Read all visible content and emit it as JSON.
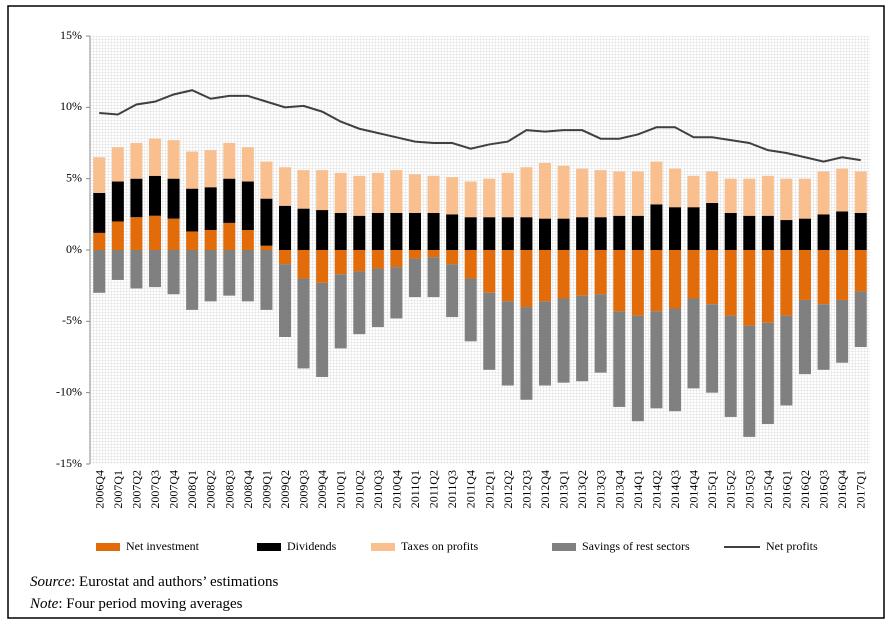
{
  "chart_data": {
    "type": "bar",
    "categories": [
      "2006Q4",
      "2007Q1",
      "2007Q2",
      "2007Q3",
      "2007Q4",
      "2008Q1",
      "2008Q2",
      "2008Q3",
      "2008Q4",
      "2009Q1",
      "2009Q2",
      "2009Q3",
      "2009Q4",
      "2010Q1",
      "2010Q2",
      "2010Q3",
      "2010Q4",
      "2011Q1",
      "2011Q2",
      "2011Q3",
      "2011Q4",
      "2012Q1",
      "2012Q2",
      "2012Q3",
      "2012Q4",
      "2013Q1",
      "2013Q2",
      "2013Q3",
      "2013Q4",
      "2014Q1",
      "2014Q2",
      "2014Q3",
      "2014Q4",
      "2015Q1",
      "2015Q2",
      "2015Q3",
      "2015Q4",
      "2016Q1",
      "2016Q2",
      "2016Q3",
      "2016Q4",
      "2017Q1"
    ],
    "series": [
      {
        "name": "Net investment",
        "color": "#e36c0a",
        "values": [
          1.2,
          2.0,
          2.3,
          2.4,
          2.2,
          1.3,
          1.4,
          1.9,
          1.4,
          0.3,
          -1.0,
          -2.0,
          -2.3,
          -1.7,
          -1.5,
          -1.3,
          -1.2,
          -0.6,
          -0.5,
          -1.0,
          -2.0,
          -3.0,
          -3.6,
          -4.0,
          -3.6,
          -3.4,
          -3.2,
          -3.1,
          -4.3,
          -4.6,
          -4.3,
          -4.1,
          -3.4,
          -3.8,
          -4.6,
          -5.3,
          -5.1,
          -4.6,
          -3.5,
          -3.8,
          -3.5,
          -2.9
        ]
      },
      {
        "name": "Dividends",
        "color": "#000000",
        "values": [
          2.8,
          2.8,
          2.7,
          2.8,
          2.8,
          3.0,
          3.0,
          3.1,
          3.4,
          3.3,
          3.1,
          2.9,
          2.8,
          2.6,
          2.4,
          2.6,
          2.6,
          2.6,
          2.6,
          2.5,
          2.3,
          2.3,
          2.3,
          2.3,
          2.2,
          2.2,
          2.3,
          2.3,
          2.4,
          2.4,
          3.2,
          3.0,
          3.0,
          3.3,
          2.6,
          2.4,
          2.4,
          2.1,
          2.2,
          2.5,
          2.7,
          2.6
        ]
      },
      {
        "name": "Taxes on profits",
        "color": "#fabf8f",
        "values": [
          2.5,
          2.4,
          2.5,
          2.6,
          2.7,
          2.6,
          2.6,
          2.5,
          2.4,
          2.6,
          2.7,
          2.7,
          2.8,
          2.8,
          2.8,
          2.8,
          3.0,
          2.7,
          2.6,
          2.6,
          2.5,
          2.7,
          3.1,
          3.5,
          3.9,
          3.7,
          3.4,
          3.3,
          3.1,
          3.1,
          3.0,
          2.7,
          2.2,
          2.2,
          2.4,
          2.6,
          2.8,
          2.9,
          2.8,
          3.0,
          3.0,
          2.9
        ]
      },
      {
        "name": "Savings of rest sectors",
        "color": "#808080",
        "values": [
          -3.0,
          -2.1,
          -2.7,
          -2.6,
          -3.1,
          -4.2,
          -3.6,
          -3.2,
          -3.6,
          -4.2,
          -5.1,
          -6.3,
          -6.6,
          -5.2,
          -4.4,
          -4.1,
          -3.6,
          -2.7,
          -2.8,
          -3.7,
          -4.4,
          -5.4,
          -5.9,
          -6.5,
          -5.9,
          -5.9,
          -6.0,
          -5.5,
          -6.7,
          -7.4,
          -6.8,
          -7.2,
          -6.3,
          -6.2,
          -7.1,
          -7.8,
          -7.1,
          -6.3,
          -5.2,
          -4.6,
          -4.4,
          -3.9
        ]
      },
      {
        "name": "Net profits",
        "type": "line",
        "color": "#404040",
        "values": [
          9.6,
          9.5,
          10.2,
          10.4,
          10.9,
          11.2,
          10.6,
          10.8,
          10.8,
          10.4,
          10.0,
          10.1,
          9.7,
          9.0,
          8.5,
          8.2,
          7.9,
          7.6,
          7.5,
          7.5,
          7.1,
          7.4,
          7.6,
          8.4,
          8.3,
          8.4,
          8.4,
          7.8,
          7.8,
          8.1,
          8.6,
          8.6,
          7.9,
          7.9,
          7.7,
          7.5,
          7.0,
          6.8,
          6.5,
          6.2,
          6.5,
          6.3
        ]
      }
    ],
    "ylim": [
      -15,
      15
    ],
    "yticks": [
      {
        "value": 15,
        "label": "15%"
      },
      {
        "value": 10,
        "label": "10%"
      },
      {
        "value": 5,
        "label": "5%"
      },
      {
        "value": 0,
        "label": "0%"
      },
      {
        "value": -5,
        "label": "-5%"
      },
      {
        "value": -10,
        "label": "-10%"
      },
      {
        "value": -15,
        "label": "-15%"
      }
    ],
    "source_label": "Source",
    "source_text": ": Eurostat and authors’ estimations",
    "note_label": "Note",
    "note_text": ": Four period moving averages"
  }
}
